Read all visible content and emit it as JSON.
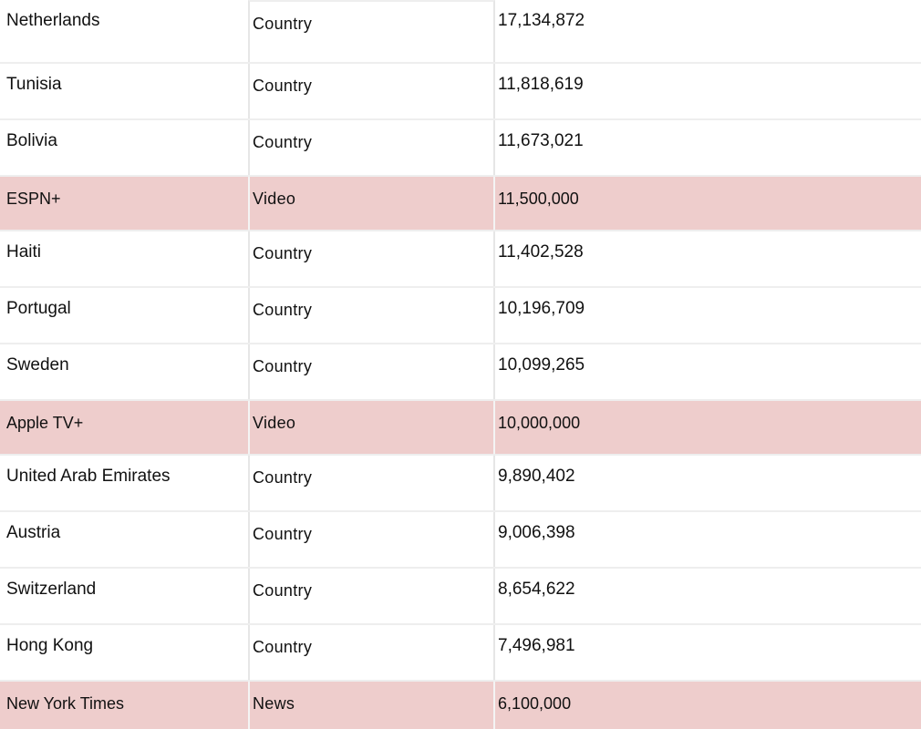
{
  "table": {
    "rows": [
      {
        "name": "Netherlands",
        "type": "Country",
        "value": "17,134,872",
        "highlight": false
      },
      {
        "name": "Tunisia",
        "type": "Country",
        "value": "11,818,619",
        "highlight": false
      },
      {
        "name": "Bolivia",
        "type": "Country",
        "value": "11,673,021",
        "highlight": false
      },
      {
        "name": "ESPN+",
        "type": "Video",
        "value": "11,500,000",
        "highlight": true
      },
      {
        "name": "Haiti",
        "type": "Country",
        "value": "11,402,528",
        "highlight": false
      },
      {
        "name": "Portugal",
        "type": "Country",
        "value": "10,196,709",
        "highlight": false
      },
      {
        "name": "Sweden",
        "type": "Country",
        "value": "10,099,265",
        "highlight": false
      },
      {
        "name": "Apple TV+",
        "type": "Video",
        "value": "10,000,000",
        "highlight": true
      },
      {
        "name": "United Arab Emirates",
        "type": "Country",
        "value": "9,890,402",
        "highlight": false
      },
      {
        "name": "Austria",
        "type": "Country",
        "value": "9,006,398",
        "highlight": false
      },
      {
        "name": "Switzerland",
        "type": "Country",
        "value": "8,654,622",
        "highlight": false
      },
      {
        "name": "Hong Kong",
        "type": "Country",
        "value": "7,496,981",
        "highlight": false
      },
      {
        "name": "New York Times",
        "type": "News",
        "value": "6,100,000",
        "highlight": true
      }
    ]
  },
  "colors": {
    "highlight_background": "#eecdcc",
    "grid_line": "#eeeeee",
    "text": "#111111"
  }
}
